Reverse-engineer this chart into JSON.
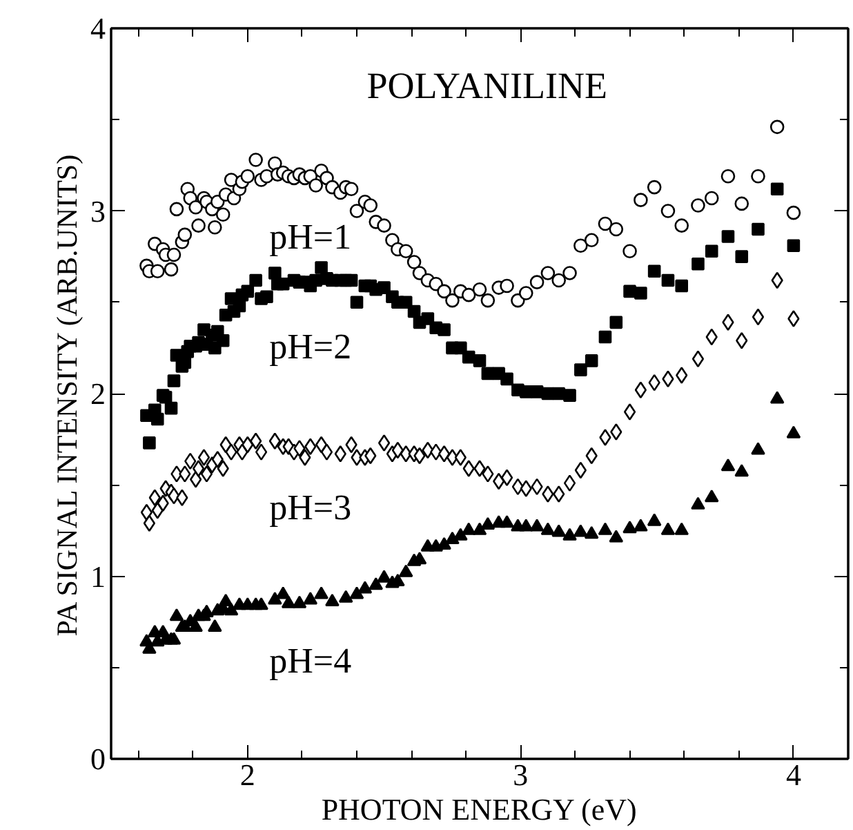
{
  "chart_data": {
    "type": "scatter",
    "title": "POLYANILINE",
    "xlabel": "PHOTON ENERGY (eV)",
    "ylabel": "PA SIGNAL INTENSITY (ARB.UNITS)",
    "xlim": [
      1.5,
      4.2
    ],
    "ylim": [
      0,
      4
    ],
    "xticks": [
      {
        "value": 1.6,
        "label": null
      },
      {
        "value": 1.8,
        "label": null
      },
      2,
      {
        "value": 2.2,
        "label": null
      },
      {
        "value": 2.4,
        "label": null
      },
      {
        "value": 2.6,
        "label": null
      },
      {
        "value": 2.8,
        "label": null
      },
      3,
      {
        "value": 3.2,
        "label": null
      },
      {
        "value": 3.4,
        "label": null
      },
      {
        "value": 3.6,
        "label": null
      },
      {
        "value": 3.8,
        "label": null
      },
      4
    ],
    "yticks": [
      0,
      {
        "value": 0.5,
        "label": null
      },
      1,
      {
        "value": 1.5,
        "label": null
      },
      2,
      {
        "value": 2.5,
        "label": null
      },
      3,
      {
        "value": 3.5,
        "label": null
      },
      4
    ],
    "grid": false,
    "series": [
      {
        "name": "pH=1",
        "color": "#000000",
        "marker": "circle",
        "x": [
          1.63,
          1.64,
          1.66,
          1.67,
          1.69,
          1.7,
          1.72,
          1.73,
          1.74,
          1.76,
          1.77,
          1.78,
          1.79,
          1.81,
          1.82,
          1.84,
          1.85,
          1.87,
          1.88,
          1.89,
          1.91,
          1.92,
          1.94,
          1.95,
          1.97,
          1.98,
          2.0,
          2.03,
          2.05,
          2.07,
          2.1,
          2.11,
          2.13,
          2.15,
          2.17,
          2.19,
          2.21,
          2.23,
          2.25,
          2.27,
          2.29,
          2.31,
          2.34,
          2.36,
          2.38,
          2.4,
          2.43,
          2.45,
          2.47,
          2.5,
          2.53,
          2.55,
          2.58,
          2.61,
          2.63,
          2.66,
          2.69,
          2.72,
          2.75,
          2.78,
          2.81,
          2.85,
          2.88,
          2.92,
          2.95,
          2.99,
          3.02,
          3.06,
          3.1,
          3.14,
          3.18,
          3.22,
          3.26,
          3.31,
          3.35,
          3.4,
          3.44,
          3.49,
          3.54,
          3.59,
          3.65,
          3.7,
          3.76,
          3.81,
          3.87,
          3.94,
          4.0
        ],
        "values": [
          2.7,
          2.67,
          2.82,
          2.67,
          2.79,
          2.76,
          2.68,
          2.76,
          3.01,
          2.83,
          2.87,
          3.12,
          3.07,
          3.02,
          2.92,
          3.07,
          3.05,
          3.01,
          2.91,
          3.05,
          2.98,
          3.09,
          3.17,
          3.07,
          3.12,
          3.16,
          3.19,
          3.28,
          3.17,
          3.19,
          3.26,
          3.2,
          3.21,
          3.19,
          3.18,
          3.2,
          3.18,
          3.19,
          3.14,
          3.22,
          3.18,
          3.13,
          3.1,
          3.13,
          3.12,
          3.0,
          3.05,
          3.03,
          2.94,
          2.92,
          2.84,
          2.79,
          2.78,
          2.72,
          2.66,
          2.62,
          2.6,
          2.56,
          2.51,
          2.56,
          2.54,
          2.57,
          2.51,
          2.58,
          2.59,
          2.51,
          2.55,
          2.61,
          2.66,
          2.62,
          2.66,
          2.81,
          2.84,
          2.93,
          2.9,
          2.78,
          3.06,
          3.13,
          3.0,
          2.92,
          3.03,
          3.07,
          3.19,
          3.04,
          3.19,
          3.46,
          2.99
        ]
      },
      {
        "name": "pH=2",
        "color": "#000000",
        "marker": "square",
        "x": [
          1.63,
          1.64,
          1.66,
          1.67,
          1.69,
          1.7,
          1.72,
          1.73,
          1.74,
          1.76,
          1.77,
          1.78,
          1.79,
          1.81,
          1.82,
          1.84,
          1.85,
          1.87,
          1.88,
          1.89,
          1.91,
          1.92,
          1.94,
          1.95,
          1.97,
          1.98,
          2.0,
          2.03,
          2.05,
          2.07,
          2.1,
          2.11,
          2.13,
          2.17,
          2.19,
          2.21,
          2.23,
          2.25,
          2.27,
          2.29,
          2.31,
          2.34,
          2.36,
          2.38,
          2.4,
          2.43,
          2.45,
          2.47,
          2.5,
          2.53,
          2.55,
          2.58,
          2.61,
          2.63,
          2.66,
          2.69,
          2.72,
          2.75,
          2.78,
          2.81,
          2.85,
          2.88,
          2.92,
          2.95,
          2.99,
          3.02,
          3.06,
          3.1,
          3.14,
          3.18,
          3.22,
          3.26,
          3.31,
          3.35,
          3.4,
          3.44,
          3.49,
          3.54,
          3.59,
          3.65,
          3.7,
          3.76,
          3.81,
          3.87,
          3.94,
          4.0
        ],
        "values": [
          1.88,
          1.73,
          1.91,
          1.86,
          1.99,
          1.98,
          1.92,
          2.07,
          2.21,
          2.15,
          2.17,
          2.23,
          2.26,
          2.26,
          2.28,
          2.35,
          2.27,
          2.32,
          2.25,
          2.34,
          2.29,
          2.43,
          2.52,
          2.45,
          2.48,
          2.54,
          2.56,
          2.62,
          2.52,
          2.53,
          2.66,
          2.6,
          2.6,
          2.62,
          2.61,
          2.61,
          2.59,
          2.62,
          2.69,
          2.63,
          2.62,
          2.62,
          2.62,
          2.62,
          2.5,
          2.59,
          2.59,
          2.57,
          2.58,
          2.53,
          2.5,
          2.5,
          2.45,
          2.39,
          2.41,
          2.36,
          2.35,
          2.25,
          2.25,
          2.2,
          2.18,
          2.11,
          2.11,
          2.08,
          2.02,
          2.01,
          2.01,
          2.0,
          2.0,
          1.99,
          2.13,
          2.18,
          2.31,
          2.39,
          2.56,
          2.55,
          2.67,
          2.62,
          2.59,
          2.71,
          2.78,
          2.86,
          2.75,
          2.9,
          3.12,
          2.81
        ]
      },
      {
        "name": "pH=3",
        "color": "#000000",
        "marker": "diamond",
        "x": [
          1.63,
          1.64,
          1.66,
          1.67,
          1.69,
          1.7,
          1.72,
          1.73,
          1.74,
          1.76,
          1.77,
          1.79,
          1.81,
          1.82,
          1.84,
          1.85,
          1.87,
          1.89,
          1.91,
          1.92,
          1.94,
          1.97,
          1.98,
          2.0,
          2.03,
          2.05,
          2.1,
          2.13,
          2.15,
          2.17,
          2.19,
          2.21,
          2.23,
          2.27,
          2.29,
          2.34,
          2.38,
          2.4,
          2.43,
          2.45,
          2.5,
          2.53,
          2.55,
          2.58,
          2.61,
          2.63,
          2.66,
          2.69,
          2.72,
          2.75,
          2.78,
          2.81,
          2.85,
          2.88,
          2.92,
          2.95,
          2.99,
          3.02,
          3.06,
          3.1,
          3.14,
          3.18,
          3.22,
          3.26,
          3.31,
          3.35,
          3.4,
          3.44,
          3.49,
          3.54,
          3.59,
          3.65,
          3.7,
          3.76,
          3.81,
          3.87,
          3.94,
          4.0
        ],
        "values": [
          1.35,
          1.29,
          1.43,
          1.36,
          1.4,
          1.48,
          1.46,
          1.44,
          1.56,
          1.43,
          1.56,
          1.63,
          1.53,
          1.59,
          1.65,
          1.56,
          1.61,
          1.64,
          1.59,
          1.72,
          1.68,
          1.72,
          1.68,
          1.72,
          1.74,
          1.68,
          1.74,
          1.71,
          1.71,
          1.68,
          1.7,
          1.65,
          1.71,
          1.72,
          1.68,
          1.67,
          1.72,
          1.65,
          1.65,
          1.66,
          1.73,
          1.67,
          1.69,
          1.67,
          1.67,
          1.66,
          1.69,
          1.68,
          1.67,
          1.65,
          1.65,
          1.59,
          1.59,
          1.56,
          1.52,
          1.54,
          1.49,
          1.48,
          1.49,
          1.45,
          1.45,
          1.51,
          1.58,
          1.66,
          1.76,
          1.79,
          1.9,
          2.02,
          2.06,
          2.08,
          2.1,
          2.19,
          2.31,
          2.39,
          2.29,
          2.42,
          2.62,
          2.41
        ]
      },
      {
        "name": "pH=4",
        "color": "#000000",
        "marker": "triangle",
        "x": [
          1.63,
          1.64,
          1.66,
          1.67,
          1.69,
          1.7,
          1.72,
          1.73,
          1.74,
          1.76,
          1.77,
          1.79,
          1.81,
          1.82,
          1.84,
          1.85,
          1.88,
          1.89,
          1.91,
          1.92,
          1.94,
          1.97,
          2.0,
          2.03,
          2.05,
          2.1,
          2.13,
          2.15,
          2.19,
          2.23,
          2.27,
          2.31,
          2.36,
          2.4,
          2.43,
          2.47,
          2.5,
          2.53,
          2.55,
          2.58,
          2.61,
          2.63,
          2.66,
          2.69,
          2.72,
          2.75,
          2.78,
          2.81,
          2.85,
          2.88,
          2.92,
          2.95,
          2.99,
          3.02,
          3.06,
          3.1,
          3.14,
          3.18,
          3.22,
          3.26,
          3.31,
          3.35,
          3.4,
          3.44,
          3.49,
          3.54,
          3.59,
          3.65,
          3.7,
          3.76,
          3.81,
          3.87,
          3.94,
          4.0
        ],
        "values": [
          0.64,
          0.6,
          0.69,
          0.64,
          0.69,
          0.65,
          0.65,
          0.65,
          0.78,
          0.72,
          0.72,
          0.75,
          0.72,
          0.78,
          0.78,
          0.8,
          0.72,
          0.81,
          0.82,
          0.86,
          0.81,
          0.84,
          0.84,
          0.84,
          0.84,
          0.87,
          0.9,
          0.85,
          0.85,
          0.87,
          0.9,
          0.86,
          0.88,
          0.9,
          0.93,
          0.95,
          0.99,
          0.96,
          0.97,
          1.02,
          1.08,
          1.09,
          1.16,
          1.16,
          1.17,
          1.2,
          1.22,
          1.25,
          1.25,
          1.28,
          1.29,
          1.29,
          1.27,
          1.27,
          1.27,
          1.25,
          1.24,
          1.22,
          1.24,
          1.23,
          1.25,
          1.21,
          1.26,
          1.27,
          1.3,
          1.25,
          1.25,
          1.39,
          1.43,
          1.6,
          1.57,
          1.69,
          1.97,
          1.78
        ]
      }
    ]
  }
}
